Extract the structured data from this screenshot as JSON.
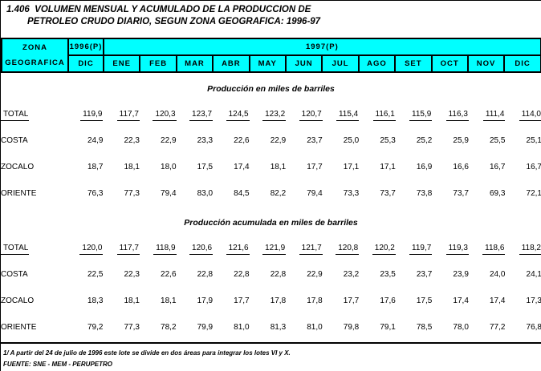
{
  "title": {
    "line1": "1.406  VOLUMEN MENSUAL Y ACUMULADO DE LA PRODUCCION DE",
    "line2": "PETROLEO CRUDO DIARIO, SEGUN ZONA GEOGRAFICA: 1996-97"
  },
  "table": {
    "zone_header_line1": "ZONA",
    "zone_header_line2": "GEOGRAFICA",
    "year1996_label": "1996(P)",
    "year1996_month": "DIC",
    "year1997_label": "1997(P)",
    "months_1997": [
      "ENE",
      "FEB",
      "MAR",
      "ABR",
      "MAY",
      "JUN",
      "JUL",
      "AGO",
      "SET",
      "OCT",
      "NOV",
      "DIC"
    ]
  },
  "sections": [
    {
      "title": "Producción en miles de barriles",
      "rows": [
        {
          "label": "TOTAL",
          "underline": true,
          "values": [
            "119,9",
            "117,7",
            "120,3",
            "123,7",
            "124,5",
            "123,2",
            "120,7",
            "115,4",
            "116,1",
            "115,9",
            "116,3",
            "111,4",
            "114,0"
          ]
        },
        {
          "label": "COSTA",
          "underline": false,
          "values": [
            "24,9",
            "22,3",
            "22,9",
            "23,3",
            "22,6",
            "22,9",
            "23,7",
            "25,0",
            "25,3",
            "25,2",
            "25,9",
            "25,5",
            "25,1"
          ]
        },
        {
          "label": "ZOCALO",
          "underline": false,
          "values": [
            "18,7",
            "18,1",
            "18,0",
            "17,5",
            "17,4",
            "18,1",
            "17,7",
            "17,1",
            "17,1",
            "16,9",
            "16,6",
            "16,7",
            "16,7"
          ]
        },
        {
          "label": "ORIENTE",
          "underline": false,
          "values": [
            "76,3",
            "77,3",
            "79,4",
            "83,0",
            "84,5",
            "82,2",
            "79,4",
            "73,3",
            "73,7",
            "73,8",
            "73,7",
            "69,3",
            "72,1"
          ]
        }
      ]
    },
    {
      "title": "Producción acumulada en miles de barriles",
      "rows": [
        {
          "label": "TOTAL",
          "underline": true,
          "values": [
            "120,0",
            "117,7",
            "118,9",
            "120,6",
            "121,6",
            "121,9",
            "121,7",
            "120,8",
            "120,2",
            "119,7",
            "119,3",
            "118,6",
            "118,2"
          ]
        },
        {
          "label": "COSTA",
          "underline": false,
          "values": [
            "22,5",
            "22,3",
            "22,6",
            "22,8",
            "22,8",
            "22,8",
            "22,9",
            "23,2",
            "23,5",
            "23,7",
            "23,9",
            "24,0",
            "24,1"
          ]
        },
        {
          "label": "ZOCALO",
          "underline": false,
          "values": [
            "18,3",
            "18,1",
            "18,1",
            "17,9",
            "17,7",
            "17,8",
            "17,8",
            "17,7",
            "17,6",
            "17,5",
            "17,4",
            "17,4",
            "17,3"
          ]
        },
        {
          "label": "ORIENTE",
          "underline": false,
          "values": [
            "79,2",
            "77,3",
            "78,2",
            "79,9",
            "81,0",
            "81,3",
            "81,0",
            "79,8",
            "79,1",
            "78,5",
            "78,0",
            "77,2",
            "76,8"
          ]
        }
      ]
    }
  ],
  "footer": {
    "footnote": "1/ A partir del 24 de julio de 1996 este lote se divide en dos áreas para integrar los lotes VI y X.",
    "source": "FUENTE: SNE - MEM - PERUPETRO"
  },
  "colors": {
    "header_bg": "#00ffff",
    "border": "#000000",
    "text": "#000000",
    "page_bg": "#ffffff"
  }
}
